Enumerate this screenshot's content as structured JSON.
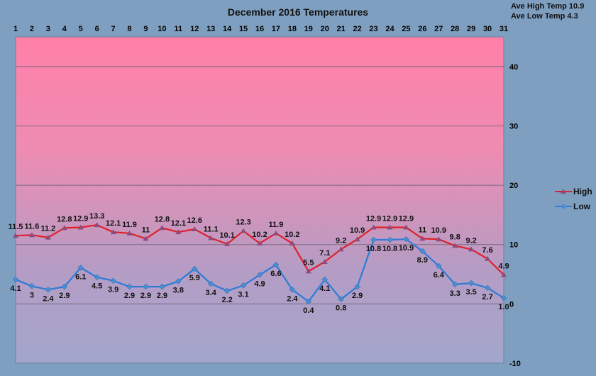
{
  "chart_data": {
    "type": "line",
    "title": "December 2016 Temperatures",
    "summary": [
      "Ave High Temp 10.9",
      "Ave Low Temp 4.3"
    ],
    "x": [
      1,
      2,
      3,
      4,
      5,
      6,
      7,
      8,
      9,
      10,
      11,
      12,
      13,
      14,
      15,
      16,
      17,
      18,
      19,
      20,
      21,
      22,
      23,
      24,
      25,
      26,
      27,
      28,
      29,
      30,
      31
    ],
    "ylim": [
      -10,
      45
    ],
    "yticks": [
      -10,
      0,
      10,
      20,
      30,
      40
    ],
    "grid": true,
    "legend_position": "right",
    "series": [
      {
        "name": "High",
        "color": "#e0202a",
        "marker": "triangle",
        "values": [
          11.5,
          11.6,
          11.2,
          12.8,
          12.9,
          13.3,
          12.1,
          11.9,
          11,
          12.8,
          12.1,
          12.6,
          11.1,
          10.1,
          12.3,
          10.2,
          11.9,
          10.2,
          5.5,
          7.1,
          9.2,
          10.9,
          12.9,
          12.9,
          12.9,
          11,
          10.9,
          9.8,
          9.2,
          7.6,
          4.9
        ],
        "labels": [
          "11.5",
          "11.6",
          "11.2",
          "12.8",
          "12.9",
          "13.3",
          "12.1",
          "11.9",
          "11",
          "12.8",
          "12.1",
          "12.6",
          "11.1",
          "10.1",
          "12.3",
          "10.2",
          "11.9",
          "10.2",
          "5.5",
          "7.1",
          "9.2",
          "10.9",
          "12.9",
          "12.9",
          "12.9",
          "11",
          "10.9",
          "9.8",
          "9.2",
          "7.6",
          "4.9"
        ]
      },
      {
        "name": "Low",
        "color": "#2c7bd6",
        "marker": "diamond",
        "values": [
          4.1,
          3,
          2.4,
          2.9,
          6.1,
          4.5,
          3.9,
          2.9,
          2.9,
          2.9,
          3.8,
          5.9,
          3.4,
          2.2,
          3.1,
          4.9,
          6.6,
          2.4,
          0.4,
          4.1,
          0.8,
          2.9,
          10.8,
          10.8,
          10.9,
          8.9,
          6.4,
          3.3,
          3.5,
          2.7,
          1.0
        ],
        "labels": [
          "4.1",
          "3",
          "2.4",
          "2.9",
          "6.1",
          "4.5",
          "3.9",
          "2.9",
          "2.9",
          "2.9",
          "3.8",
          "5.9",
          "3.4",
          "2.2",
          "3.1",
          "4.9",
          "6.6",
          "2.4",
          "0.4",
          "4.1",
          "0.8",
          "2.9",
          "10.8",
          "10.8",
          "10.9",
          "8.9",
          "6.4",
          "3.3",
          "3.5",
          "2.7",
          "1.0"
        ]
      }
    ]
  }
}
